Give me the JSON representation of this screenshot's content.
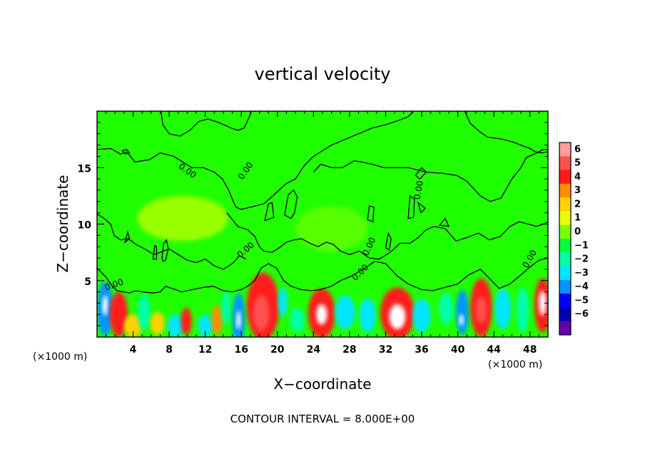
{
  "chart_data": {
    "type": "heatmap",
    "title": "vertical velocity",
    "xlabel": "X−coordinate",
    "ylabel": "Z−coordinate",
    "x_unit_left": "(×1000 m)",
    "x_unit_right": "(×1000 m)",
    "xlim": [
      0,
      50
    ],
    "ylim": [
      0,
      20
    ],
    "xticks": [
      4,
      8,
      12,
      16,
      20,
      24,
      28,
      32,
      36,
      40,
      44,
      48
    ],
    "yticks": [
      5,
      10,
      15
    ],
    "contour_label": "0.00",
    "footer": "CONTOUR INTERVAL = 8.000E+00",
    "colorbar": {
      "levels": [
        "6",
        "5",
        "4",
        "3",
        "2",
        "1",
        "0",
        "−1",
        "−2",
        "−3",
        "−4",
        "−5",
        "−6"
      ],
      "colors": [
        "#ff9c9c",
        "#ff5050",
        "#ff1a1a",
        "#ff8c00",
        "#ffd200",
        "#e8ff00",
        "#7cff00",
        "#00ff3c",
        "#00ffaa",
        "#00e6ff",
        "#0096ff",
        "#0000ff",
        "#0000b4",
        "#6600aa"
      ]
    },
    "cells": [
      {
        "x": 0.9,
        "z": 2.5,
        "w": 0.9,
        "h": 2.4,
        "v": -4.5
      },
      {
        "x": 0.9,
        "z": 2.8,
        "w": 0.3,
        "h": 0.9,
        "v": 6
      },
      {
        "x": 2.4,
        "z": 2.0,
        "w": 1.0,
        "h": 2.0,
        "v": 3.5
      },
      {
        "x": 4.0,
        "z": 1.0,
        "w": 1.0,
        "h": 1.0,
        "v": 2
      },
      {
        "x": 5.2,
        "z": 2.2,
        "w": 0.7,
        "h": 1.6,
        "v": -2.5
      },
      {
        "x": 6.7,
        "z": 1.2,
        "w": 0.8,
        "h": 1.0,
        "v": 2
      },
      {
        "x": 8.7,
        "z": 1.0,
        "w": 0.9,
        "h": 1.0,
        "v": -3.5
      },
      {
        "x": 9.9,
        "z": 1.4,
        "w": 0.6,
        "h": 1.2,
        "v": 3.5
      },
      {
        "x": 12.0,
        "z": 1.0,
        "w": 0.8,
        "h": 1.0,
        "v": -3
      },
      {
        "x": 13.3,
        "z": 1.5,
        "w": 0.6,
        "h": 1.3,
        "v": 3
      },
      {
        "x": 14.3,
        "z": 2.6,
        "w": 0.5,
        "h": 1.5,
        "v": -2
      },
      {
        "x": 15.7,
        "z": 1.6,
        "w": 0.7,
        "h": 2.3,
        "v": -4.5
      },
      {
        "x": 15.7,
        "z": 1.5,
        "w": 0.25,
        "h": 0.8,
        "v": 6
      },
      {
        "x": 18.4,
        "z": 2.7,
        "w": 1.8,
        "h": 3.0,
        "v": 3.5
      },
      {
        "x": 18.2,
        "z": 2.1,
        "w": 0.9,
        "h": 1.6,
        "v": 5
      },
      {
        "x": 20.6,
        "z": 3.1,
        "w": 0.5,
        "h": 1.3,
        "v": -3
      },
      {
        "x": 22.2,
        "z": 1.5,
        "w": 0.8,
        "h": 1.1,
        "v": -2.5
      },
      {
        "x": 24.9,
        "z": 2.1,
        "w": 1.5,
        "h": 2.2,
        "v": 4
      },
      {
        "x": 24.9,
        "z": 2.0,
        "w": 0.6,
        "h": 0.9,
        "v": 6
      },
      {
        "x": 27.5,
        "z": 2.2,
        "w": 1.1,
        "h": 1.5,
        "v": -3.5
      },
      {
        "x": 30.0,
        "z": 1.9,
        "w": 0.9,
        "h": 1.5,
        "v": -3
      },
      {
        "x": 33.3,
        "z": 2.1,
        "w": 1.9,
        "h": 2.3,
        "v": 4
      },
      {
        "x": 33.3,
        "z": 1.8,
        "w": 0.9,
        "h": 1.1,
        "v": 6
      },
      {
        "x": 36.0,
        "z": 1.9,
        "w": 1.0,
        "h": 1.5,
        "v": -3.5
      },
      {
        "x": 38.7,
        "z": 2.5,
        "w": 0.8,
        "h": 1.4,
        "v": -2
      },
      {
        "x": 40.5,
        "z": 2.2,
        "w": 0.7,
        "h": 2.0,
        "v": -4
      },
      {
        "x": 40.4,
        "z": 1.5,
        "w": 0.25,
        "h": 0.5,
        "v": 6
      },
      {
        "x": 42.6,
        "z": 2.6,
        "w": 1.2,
        "h": 2.6,
        "v": 3.5
      },
      {
        "x": 42.6,
        "z": 2.4,
        "w": 0.6,
        "h": 1.2,
        "v": 5
      },
      {
        "x": 45.0,
        "z": 2.5,
        "w": 0.9,
        "h": 1.8,
        "v": -3
      },
      {
        "x": 47.2,
        "z": 2.4,
        "w": 0.7,
        "h": 2.0,
        "v": -2.5
      },
      {
        "x": 49.4,
        "z": 2.8,
        "w": 0.9,
        "h": 2.4,
        "v": 3.5
      },
      {
        "x": 49.4,
        "z": 3.0,
        "w": 0.4,
        "h": 1.1,
        "v": 6
      },
      {
        "x": 9.5,
        "z": 10.5,
        "w": 5.0,
        "h": 2.0,
        "v": 0.4
      },
      {
        "x": 26.0,
        "z": 9.6,
        "w": 4.0,
        "h": 2.0,
        "v": -0.3
      }
    ],
    "contours": [
      [
        [
          0,
          6.1
        ],
        [
          1.0,
          5.3
        ],
        [
          1.6,
          4.6
        ],
        [
          2.2,
          4.1
        ],
        [
          3.0,
          4.0
        ],
        [
          3.6,
          3.9
        ],
        [
          4.3,
          4.1
        ],
        [
          5.0,
          4.0
        ],
        [
          6.2,
          3.9
        ],
        [
          7.0,
          4.0
        ],
        [
          7.6,
          4.5
        ],
        [
          8.3,
          4.3
        ],
        [
          9.4,
          4.0
        ],
        [
          10.6,
          4.2
        ],
        [
          11.8,
          4.4
        ],
        [
          12.9,
          4.5
        ],
        [
          14.0,
          4.1
        ],
        [
          15.0,
          4.0
        ],
        [
          16.0,
          4.2
        ],
        [
          16.7,
          4.5
        ],
        [
          17.5,
          5.0
        ],
        [
          18.2,
          6.1
        ],
        [
          19.0,
          6.5
        ],
        [
          19.9,
          6.1
        ],
        [
          20.7,
          5.0
        ],
        [
          21.5,
          4.5
        ],
        [
          22.6,
          4.2
        ],
        [
          23.8,
          4.1
        ],
        [
          24.8,
          4.2
        ],
        [
          26.0,
          4.5
        ],
        [
          27.0,
          5.0
        ],
        [
          28.2,
          5.4
        ],
        [
          29.5,
          6.0
        ],
        [
          30.8,
          6.7
        ],
        [
          32.0,
          6.5
        ],
        [
          33.3,
          5.4
        ],
        [
          34.5,
          4.7
        ],
        [
          36.0,
          4.2
        ],
        [
          37.2,
          4.1
        ],
        [
          38.6,
          4.4
        ],
        [
          40.0,
          4.7
        ],
        [
          41.2,
          5.5
        ],
        [
          42.5,
          6.0
        ],
        [
          43.5,
          5.2
        ],
        [
          44.6,
          4.3
        ],
        [
          45.8,
          4.7
        ],
        [
          47.0,
          5.5
        ],
        [
          48.0,
          6.2
        ],
        [
          49.0,
          6.8
        ],
        [
          50,
          7.0
        ]
      ],
      [
        [
          0,
          16.6
        ],
        [
          1.5,
          16.7
        ],
        [
          2.6,
          16.2
        ],
        [
          3.3,
          16.4
        ],
        [
          4.2,
          15.5
        ],
        [
          5.8,
          15.7
        ],
        [
          7.0,
          16.3
        ],
        [
          8.5,
          16.0
        ],
        [
          9.5,
          15.5
        ],
        [
          10.5,
          15.0
        ],
        [
          11.8,
          15.0
        ],
        [
          13.0,
          14.6
        ],
        [
          13.9,
          14.0
        ],
        [
          14.6,
          13.0
        ],
        [
          15.1,
          12.0
        ],
        [
          15.4,
          11.5
        ],
        [
          16.0,
          11.3
        ],
        [
          17.0,
          11.5
        ],
        [
          18.5,
          11.8
        ],
        [
          19.5,
          12.5
        ],
        [
          20.3,
          13.1
        ],
        [
          21.0,
          13.6
        ],
        [
          22.0,
          14.0
        ],
        [
          23.0,
          15.2
        ],
        [
          24.0,
          16.0
        ],
        [
          25.0,
          16.5
        ],
        [
          26.0,
          17.0
        ],
        [
          27.5,
          17.5
        ],
        [
          29.0,
          18.0
        ],
        [
          30.5,
          18.5
        ],
        [
          32.0,
          18.8
        ],
        [
          33.5,
          19.2
        ],
        [
          34.5,
          19.5
        ],
        [
          35.0,
          19.95
        ]
      ],
      [
        [
          7.1,
          19.95
        ],
        [
          7.3,
          18.8
        ],
        [
          8.0,
          18.0
        ],
        [
          9.2,
          17.8
        ],
        [
          10.3,
          18.3
        ],
        [
          11.3,
          19.1
        ],
        [
          12.3,
          19.3
        ],
        [
          13.5,
          19.0
        ],
        [
          14.9,
          18.5
        ],
        [
          15.6,
          18.3
        ],
        [
          16.3,
          18.5
        ],
        [
          16.9,
          19.5
        ],
        [
          17.1,
          19.95
        ]
      ],
      [
        [
          40.8,
          19.95
        ],
        [
          41.4,
          18.9
        ],
        [
          42.4,
          18.2
        ],
        [
          43.3,
          17.7
        ],
        [
          44.2,
          17.6
        ],
        [
          45.0,
          17.5
        ],
        [
          46.0,
          17.3
        ],
        [
          47.0,
          17.0
        ],
        [
          48.0,
          16.7
        ],
        [
          48.6,
          16.4
        ],
        [
          49.3,
          16.3
        ],
        [
          50,
          16.4
        ]
      ],
      [
        [
          24.0,
          14.6
        ],
        [
          24.8,
          15.3
        ],
        [
          26.0,
          15.0
        ],
        [
          27.2,
          15.0
        ],
        [
          28.5,
          15.6
        ],
        [
          29.3,
          15.5
        ],
        [
          30.5,
          15.3
        ],
        [
          31.8,
          15.0
        ],
        [
          34.5,
          15.0
        ],
        [
          36.5,
          14.6
        ],
        [
          38.3,
          14.5
        ],
        [
          39.9,
          14.3
        ],
        [
          41.0,
          13.8
        ],
        [
          42.5,
          12.5
        ],
        [
          43.6,
          12.0
        ],
        [
          44.8,
          12.3
        ],
        [
          46.0,
          14.0
        ],
        [
          47.0,
          15.0
        ],
        [
          47.6,
          15.9
        ],
        [
          48.8,
          16.3
        ],
        [
          49.4,
          16.6
        ],
        [
          50,
          16.6
        ]
      ],
      [
        [
          14.4,
          11.0
        ],
        [
          15.6,
          9.8
        ],
        [
          16.7,
          9.5
        ],
        [
          17.5,
          8.9
        ],
        [
          18.0,
          8.0
        ],
        [
          18.5,
          7.6
        ],
        [
          19.4,
          7.5
        ],
        [
          20.2,
          7.9
        ],
        [
          21.0,
          8.4
        ],
        [
          21.8,
          8.6
        ],
        [
          22.7,
          8.7
        ],
        [
          23.6,
          8.3
        ],
        [
          24.5,
          8.0
        ],
        [
          25.4,
          8.4
        ],
        [
          26.2,
          8.2
        ],
        [
          27.0,
          7.6
        ],
        [
          28.0,
          7.3
        ],
        [
          29.1,
          7.6
        ],
        [
          30.2,
          7.0
        ],
        [
          31.3,
          6.9
        ],
        [
          32.5,
          7.5
        ],
        [
          33.6,
          8.3
        ],
        [
          34.7,
          8.3
        ],
        [
          35.6,
          8.8
        ],
        [
          36.5,
          9.5
        ],
        [
          37.4,
          9.8
        ],
        [
          38.6,
          9.6
        ],
        [
          39.8,
          8.5
        ],
        [
          41.0,
          8.8
        ],
        [
          42.3,
          9.2
        ],
        [
          43.5,
          8.6
        ],
        [
          44.7,
          8.9
        ],
        [
          45.8,
          9.8
        ],
        [
          46.8,
          10.2
        ],
        [
          47.8,
          10.0
        ],
        [
          48.7,
          9.8
        ],
        [
          49.5,
          10.0
        ],
        [
          50,
          10.2
        ]
      ],
      [
        [
          0,
          10.9
        ],
        [
          0.8,
          10.5
        ],
        [
          1.5,
          10.0
        ],
        [
          1.9,
          9.0
        ],
        [
          2.6,
          8.6
        ],
        [
          3.5,
          8.7
        ],
        [
          4.3,
          8.2
        ],
        [
          5.3,
          7.8
        ],
        [
          6.3,
          7.3
        ],
        [
          7.0,
          7.5
        ],
        [
          8.0,
          7.8
        ],
        [
          9.0,
          7.3
        ],
        [
          10.0,
          6.8
        ],
        [
          11.0,
          6.6
        ],
        [
          12.0,
          6.9
        ],
        [
          13.0,
          6.3
        ],
        [
          14.0,
          6.0
        ],
        [
          15.0,
          6.5
        ],
        [
          15.8,
          7.2
        ],
        [
          16.5,
          6.9
        ]
      ]
    ],
    "loops": [
      [
        [
          7.2,
          7.0
        ],
        [
          7.4,
          8.3
        ],
        [
          7.7,
          8.6
        ],
        [
          7.9,
          7.8
        ],
        [
          7.6,
          6.8
        ],
        [
          7.3,
          6.7
        ]
      ],
      [
        [
          6.2,
          6.9
        ],
        [
          6.4,
          8.1
        ],
        [
          6.6,
          8.0
        ],
        [
          6.6,
          6.9
        ]
      ],
      [
        [
          3.1,
          8.4
        ],
        [
          3.4,
          9.3
        ],
        [
          3.6,
          8.7
        ]
      ],
      [
        [
          20.8,
          10.8
        ],
        [
          21.2,
          12.6
        ],
        [
          21.8,
          13.0
        ],
        [
          22.2,
          12.4
        ],
        [
          21.9,
          11.0
        ],
        [
          21.5,
          10.5
        ]
      ],
      [
        [
          18.6,
          10.3
        ],
        [
          19.0,
          11.8
        ],
        [
          19.4,
          11.9
        ],
        [
          19.6,
          10.6
        ]
      ],
      [
        [
          34.5,
          10.5
        ],
        [
          34.7,
          12.5
        ],
        [
          35.2,
          12.2
        ],
        [
          35.1,
          10.6
        ]
      ],
      [
        [
          35.3,
          14.3
        ],
        [
          36.0,
          15.0
        ],
        [
          36.5,
          14.6
        ],
        [
          35.8,
          14.0
        ]
      ],
      [
        [
          30.0,
          10.4
        ],
        [
          30.2,
          11.6
        ],
        [
          30.7,
          11.5
        ],
        [
          30.6,
          10.2
        ]
      ],
      [
        [
          35.6,
          11.9
        ],
        [
          36.4,
          11.4
        ],
        [
          35.9,
          11.0
        ]
      ],
      [
        [
          32.0,
          7.9
        ],
        [
          32.3,
          9.2
        ],
        [
          32.6,
          8.7
        ],
        [
          32.4,
          7.7
        ]
      ],
      [
        [
          2.8,
          16.5
        ],
        [
          3.3,
          16.6
        ],
        [
          3.6,
          16.3
        ],
        [
          3.1,
          16.2
        ]
      ],
      [
        [
          38.0,
          9.9
        ],
        [
          38.6,
          10.5
        ],
        [
          39.0,
          9.8
        ]
      ]
    ],
    "labels": [
      {
        "x": 1.9,
        "z": 4.6,
        "r": -20
      },
      {
        "x": 10.0,
        "z": 14.7,
        "r": 35
      },
      {
        "x": 16.5,
        "z": 14.7,
        "r": -55
      },
      {
        "x": 16.5,
        "z": 7.7,
        "r": -40
      },
      {
        "x": 29.2,
        "z": 5.7,
        "r": -45
      },
      {
        "x": 30.2,
        "z": 8.0,
        "r": -65
      },
      {
        "x": 35.7,
        "z": 13.0,
        "r": -80
      },
      {
        "x": 48.0,
        "z": 6.9,
        "r": -60
      }
    ]
  }
}
